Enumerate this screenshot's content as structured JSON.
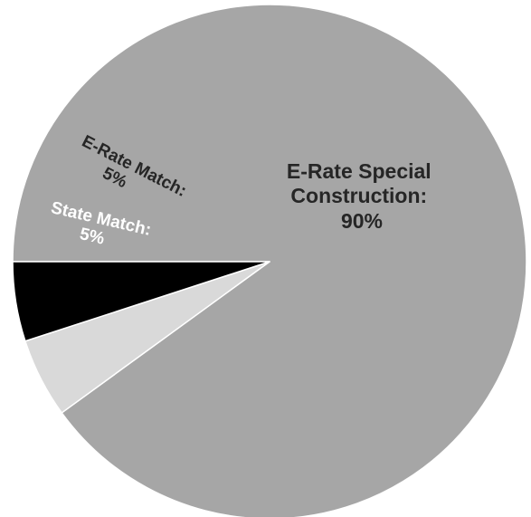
{
  "chart_data": {
    "type": "pie",
    "title": "",
    "slices": [
      {
        "label_lines": [
          "E-Rate Special",
          "Construction:",
          "90%"
        ],
        "value": 90,
        "color": "#a6a6a6",
        "text_color": "#262626"
      },
      {
        "label_lines": [
          "E-Rate Match:",
          "5%"
        ],
        "value": 5,
        "color": "#d9d9d9",
        "text_color": "#262626"
      },
      {
        "label_lines": [
          "State Match:",
          "5%"
        ],
        "value": 5,
        "color": "#000000",
        "text_color": "#ffffff"
      }
    ]
  }
}
